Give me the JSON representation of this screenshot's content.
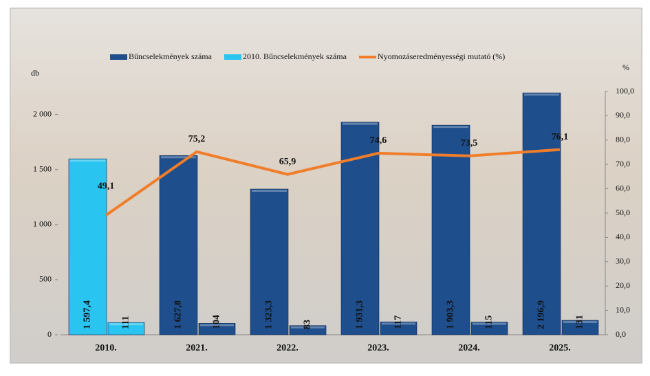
{
  "chart_data": {
    "type": "bar",
    "categories": [
      "2010.",
      "2021.",
      "2022.",
      "2023.",
      "2024.",
      "2025."
    ],
    "series": [
      {
        "name": "Bűncselekmények száma",
        "color": "#1f4e8c",
        "values": [
          null,
          1627.8,
          1323.3,
          1931.3,
          1903.3,
          2196.9
        ],
        "value_labels": [
          null,
          "1 627,8",
          "1 323,3",
          "1 931,3",
          "1 903,3",
          "2 196,9"
        ]
      },
      {
        "name": "2010. Bűncselekmények száma",
        "color": "#29c4f0",
        "values": [
          1597.4,
          null,
          null,
          null,
          null,
          null
        ],
        "value_labels": [
          "1 597,4",
          null,
          null,
          null,
          null,
          null
        ]
      },
      {
        "colors": [
          "#29c4f0",
          "#1f4e8c",
          "#1f4e8c",
          "#1f4e8c",
          "#1f4e8c",
          "#1f4e8c"
        ],
        "values": [
          111,
          104,
          83,
          117,
          115,
          131
        ]
      },
      {
        "name": "Nyomozáseredményességi mutató (%)",
        "type": "line",
        "axis": "y2",
        "color": "#f07d2a",
        "values": [
          49.1,
          75.2,
          65.9,
          74.6,
          73.5,
          76.1
        ],
        "value_labels": [
          "49,1",
          "75,2",
          "65,9",
          "74,6",
          "73,5",
          "76,1"
        ]
      }
    ],
    "ylabel": "db",
    "y2label": "%",
    "ylim": [
      0,
      2210
    ],
    "yticks": [
      0,
      500,
      {
        "value": 1000,
        "label": "1 000"
      },
      {
        "value": 1500,
        "label": "1 500"
      },
      {
        "value": 2000,
        "label": "2 000"
      }
    ],
    "y2lim": [
      0,
      100
    ],
    "y2ticks": [
      {
        "value": 0,
        "label": "0,0"
      },
      {
        "value": 10,
        "label": "10,0"
      },
      {
        "value": 20,
        "label": "20,0"
      },
      {
        "value": 30,
        "label": "30,0"
      },
      {
        "value": 40,
        "label": "40,0"
      },
      {
        "value": 50,
        "label": "50,0"
      },
      {
        "value": 60,
        "label": "60,0"
      },
      {
        "value": 70,
        "label": "70,0"
      },
      {
        "value": 80,
        "label": "80,0"
      },
      {
        "value": 90,
        "label": "90,0"
      },
      {
        "value": 100,
        "label": "100,0"
      }
    ]
  }
}
